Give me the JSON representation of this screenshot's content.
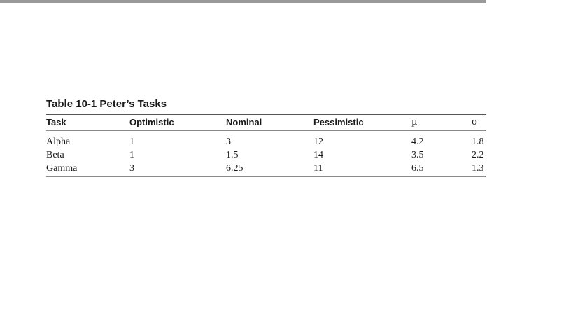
{
  "caption": "Table 10-1  Peter’s Tasks",
  "table": {
    "headers": [
      "Task",
      "Optimistic",
      "Nominal",
      "Pessimistic",
      "µ",
      "σ"
    ],
    "rows": [
      [
        "Alpha",
        "1",
        "3",
        "12",
        "4.2",
        "1.8"
      ],
      [
        "Beta",
        "1",
        "1.5",
        "14",
        "3.5",
        "2.2"
      ],
      [
        "Gamma",
        "3",
        "6.25",
        "11",
        "6.5",
        "1.3"
      ]
    ]
  },
  "colors": {
    "top_rule": "#9a9a9a",
    "text": "#1a1a1a"
  }
}
